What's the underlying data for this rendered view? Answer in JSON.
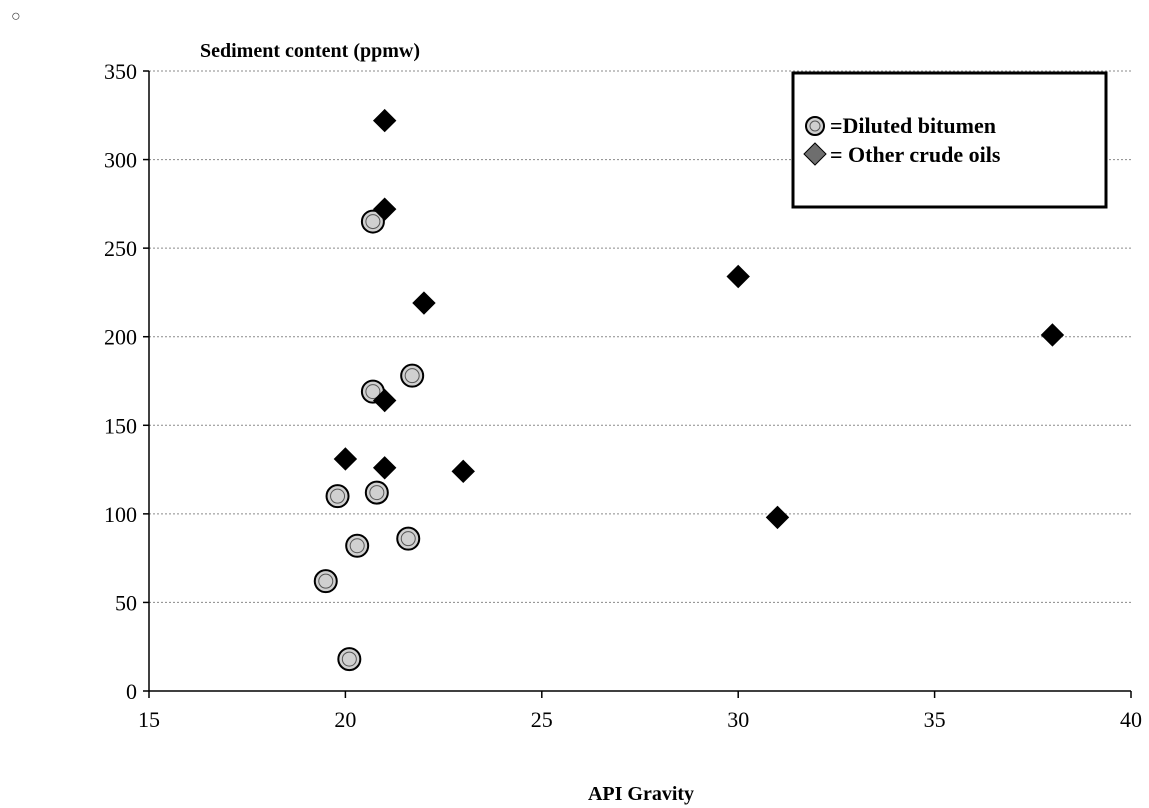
{
  "corner_mark": "○",
  "chart_data": {
    "type": "scatter",
    "title": "Sediment content (ppmw)",
    "xlabel": "API Gravity",
    "ylabel": "",
    "xlim": [
      15,
      40
    ],
    "ylim": [
      0,
      350
    ],
    "xticks": [
      15,
      20,
      25,
      30,
      35,
      40
    ],
    "yticks": [
      0,
      50,
      100,
      150,
      200,
      250,
      300,
      350
    ],
    "grid": "horizontal",
    "legend_position": "top-right",
    "series": [
      {
        "name": "=Diluted bitumen",
        "marker": "circle",
        "color": "#d0d0d0",
        "points": [
          {
            "x": 20.7,
            "y": 265
          },
          {
            "x": 21.7,
            "y": 178
          },
          {
            "x": 20.7,
            "y": 169
          },
          {
            "x": 19.8,
            "y": 110
          },
          {
            "x": 20.8,
            "y": 112
          },
          {
            "x": 21.6,
            "y": 86
          },
          {
            "x": 20.3,
            "y": 82
          },
          {
            "x": 19.5,
            "y": 62
          },
          {
            "x": 20.1,
            "y": 18
          }
        ]
      },
      {
        "name": "= Other crude oils",
        "marker": "diamond",
        "color": "#000000",
        "points": [
          {
            "x": 21.0,
            "y": 322
          },
          {
            "x": 21.0,
            "y": 272
          },
          {
            "x": 22.0,
            "y": 219
          },
          {
            "x": 21.0,
            "y": 164
          },
          {
            "x": 20.0,
            "y": 131
          },
          {
            "x": 21.0,
            "y": 126
          },
          {
            "x": 23.0,
            "y": 124
          },
          {
            "x": 30.0,
            "y": 234
          },
          {
            "x": 38.0,
            "y": 201
          },
          {
            "x": 31.0,
            "y": 98
          }
        ]
      }
    ]
  }
}
